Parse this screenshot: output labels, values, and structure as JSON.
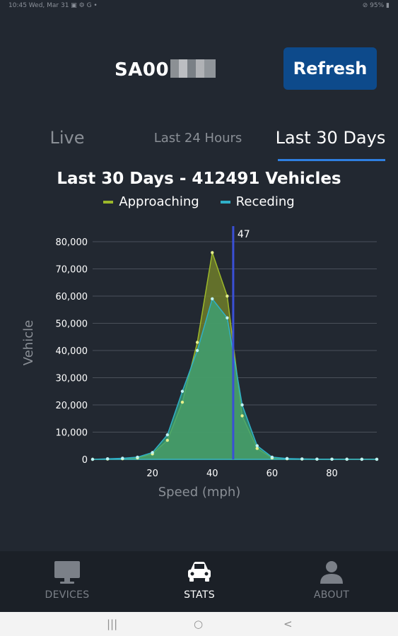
{
  "statusbar": {
    "left": "10:45  Wed, Mar 31  ▣ ⚙ G •",
    "right": "⊘ 95% ▮"
  },
  "header": {
    "device_id": "SA00",
    "refresh_label": "Refresh"
  },
  "tabs": [
    {
      "label": "Live"
    },
    {
      "label": "Last 24 Hours"
    },
    {
      "label": "Last 30 Days"
    }
  ],
  "colors": {
    "approaching": "#9cb82a",
    "receding": "#2fb0c8",
    "marker": "#3a50d6",
    "accent": "#0d4a8b"
  },
  "chart_data": {
    "type": "area",
    "title": "Last 30 Days - 412491 Vehicles",
    "xlabel": "Speed (mph)",
    "ylabel": "Vehicle",
    "xlim": [
      0,
      95
    ],
    "ylim": [
      0,
      80000
    ],
    "x_ticks": [
      20,
      40,
      60,
      80
    ],
    "y_ticks": [
      0,
      10000,
      20000,
      30000,
      40000,
      50000,
      60000,
      70000,
      80000
    ],
    "y_tick_labels": [
      "0",
      "10,000",
      "20,000",
      "30,000",
      "40,000",
      "50,000",
      "60,000",
      "70,000",
      "80,000"
    ],
    "legend_position": "top-center",
    "marker_line": {
      "x": 47,
      "label": "47"
    },
    "series": [
      {
        "name": "Approaching",
        "x": [
          0,
          5,
          10,
          15,
          20,
          25,
          30,
          35,
          40,
          45,
          50,
          55,
          60,
          65,
          70,
          75,
          80,
          85,
          90,
          95
        ],
        "values": [
          0,
          100,
          200,
          500,
          2000,
          7000,
          21000,
          43000,
          76000,
          60000,
          16000,
          4000,
          500,
          200,
          100,
          50,
          50,
          30,
          20,
          10
        ]
      },
      {
        "name": "Receding",
        "x": [
          0,
          5,
          10,
          15,
          20,
          25,
          30,
          35,
          40,
          45,
          50,
          55,
          60,
          65,
          70,
          75,
          80,
          85,
          90,
          95
        ],
        "values": [
          0,
          200,
          400,
          800,
          2500,
          9000,
          25000,
          40000,
          59000,
          52000,
          20000,
          5000,
          800,
          300,
          150,
          80,
          60,
          40,
          30,
          20
        ]
      }
    ]
  },
  "nav": {
    "devices": "DEVICES",
    "stats": "STATS",
    "about": "ABOUT"
  },
  "system_nav": {
    "recents": "|||",
    "home": "○",
    "back": "<"
  }
}
